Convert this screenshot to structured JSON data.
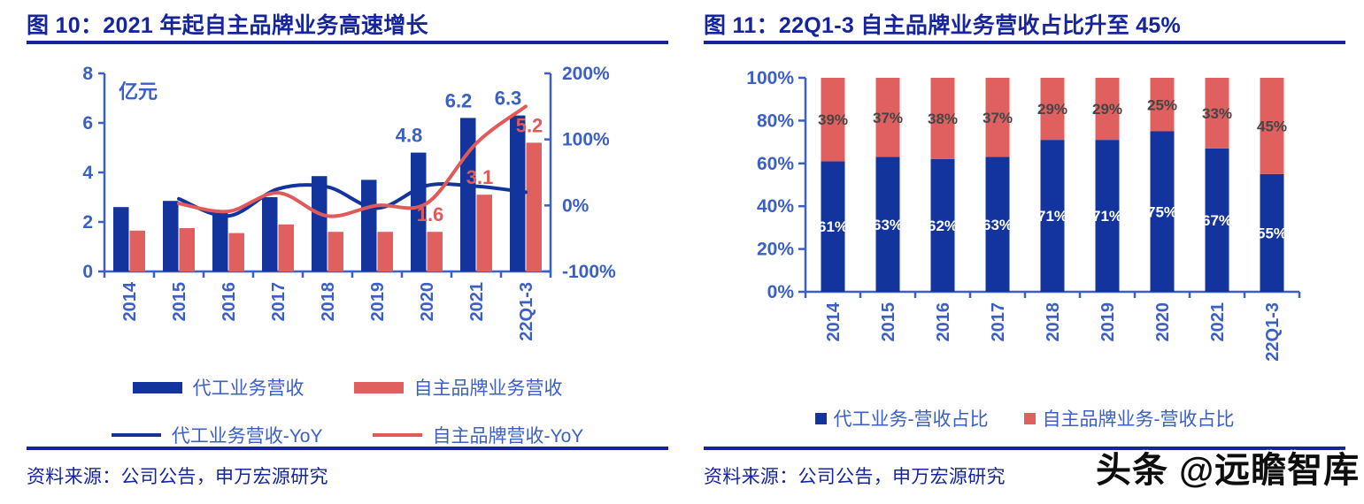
{
  "watermark": "头条 @远瞻智库",
  "colors": {
    "title_navy": "#16259c",
    "axis_blue": "#3b5fc4",
    "bar_navy": "#13349c",
    "bar_red": "#e06060",
    "line_red": "#e05a5a",
    "stack_label_dark": "#454545",
    "stack_label_light": "#ffffff",
    "watermark_black": "#0d0d0d"
  },
  "figure10": {
    "title": "图 10：2021 年起自主品牌业务高速增长",
    "source": "资料来源：公司公告，申万宏源研究",
    "chart_data": {
      "type": "combo-bar-line",
      "categories": [
        "2014",
        "2015",
        "2016",
        "2017",
        "2018",
        "2019",
        "2020",
        "2021",
        "22Q1-3"
      ],
      "unit_label": "亿元",
      "left_axis": {
        "min": 0,
        "max": 8,
        "tick_values": [
          0,
          2,
          4,
          6,
          8
        ],
        "tick_labels": [
          "0",
          "2",
          "4",
          "6",
          "8"
        ]
      },
      "right_axis": {
        "min": -100,
        "max": 200,
        "tick_values": [
          -100,
          0,
          100,
          200
        ],
        "tick_labels": [
          "-100%",
          "0%",
          "100%",
          "200%"
        ]
      },
      "bar_series": [
        {
          "name": "代工业务营收",
          "color": "#13349c",
          "label_color": "#3b5fc4",
          "values": [
            2.6,
            2.85,
            2.4,
            3.0,
            3.85,
            3.7,
            4.8,
            6.2,
            6.3
          ],
          "labels": {
            "6": "4.8",
            "7": "6.2",
            "8": "6.3"
          }
        },
        {
          "name": "自主品牌业务营收",
          "color": "#e06060",
          "label_color": "#e05a5a",
          "values": [
            1.65,
            1.75,
            1.55,
            1.9,
            1.6,
            1.6,
            1.6,
            3.1,
            5.2
          ],
          "labels": {
            "6": "1.6",
            "7": "3.1",
            "8": "5.2"
          }
        }
      ],
      "line_series": [
        {
          "name": "代工业务营收-YoY",
          "color": "#13349c",
          "values": [
            null,
            10,
            -16,
            25,
            28,
            -4,
            30,
            29,
            20
          ]
        },
        {
          "name": "自主品牌营收-YoY",
          "color": "#e05a5a",
          "values": [
            null,
            3,
            -9,
            19,
            -16,
            0,
            3,
            94,
            150
          ]
        }
      ],
      "legend_position": "bottom",
      "grid": false
    }
  },
  "figure11": {
    "title": "图 11：22Q1-3 自主品牌业务营收占比升至 45%",
    "source": "资料来源：公司公告，申万宏源研究",
    "chart_data": {
      "type": "stacked-bar-100",
      "categories": [
        "2014",
        "2015",
        "2016",
        "2017",
        "2018",
        "2019",
        "2020",
        "2021",
        "22Q1-3"
      ],
      "y_axis": {
        "min": 0,
        "max": 100,
        "tick_values": [
          0,
          20,
          40,
          60,
          80,
          100
        ],
        "tick_labels": [
          "0%",
          "20%",
          "40%",
          "60%",
          "80%",
          "100%"
        ]
      },
      "series": [
        {
          "name": "代工业务-营收占比",
          "color": "#13349c",
          "label_color": "#ffffff",
          "values": [
            61,
            63,
            62,
            63,
            71,
            71,
            75,
            67,
            55
          ],
          "value_labels": [
            "61%",
            "63%",
            "62%",
            "63%",
            "71%",
            "71%",
            "75%",
            "67%",
            "55%"
          ]
        },
        {
          "name": "自主品牌业务-营收占比",
          "color": "#e06060",
          "label_color": "#454545",
          "values": [
            39,
            37,
            38,
            37,
            29,
            29,
            25,
            33,
            45
          ],
          "value_labels": [
            "39%",
            "37%",
            "38%",
            "37%",
            "29%",
            "29%",
            "25%",
            "33%",
            "45%"
          ]
        }
      ],
      "legend_position": "bottom",
      "grid": false
    }
  }
}
